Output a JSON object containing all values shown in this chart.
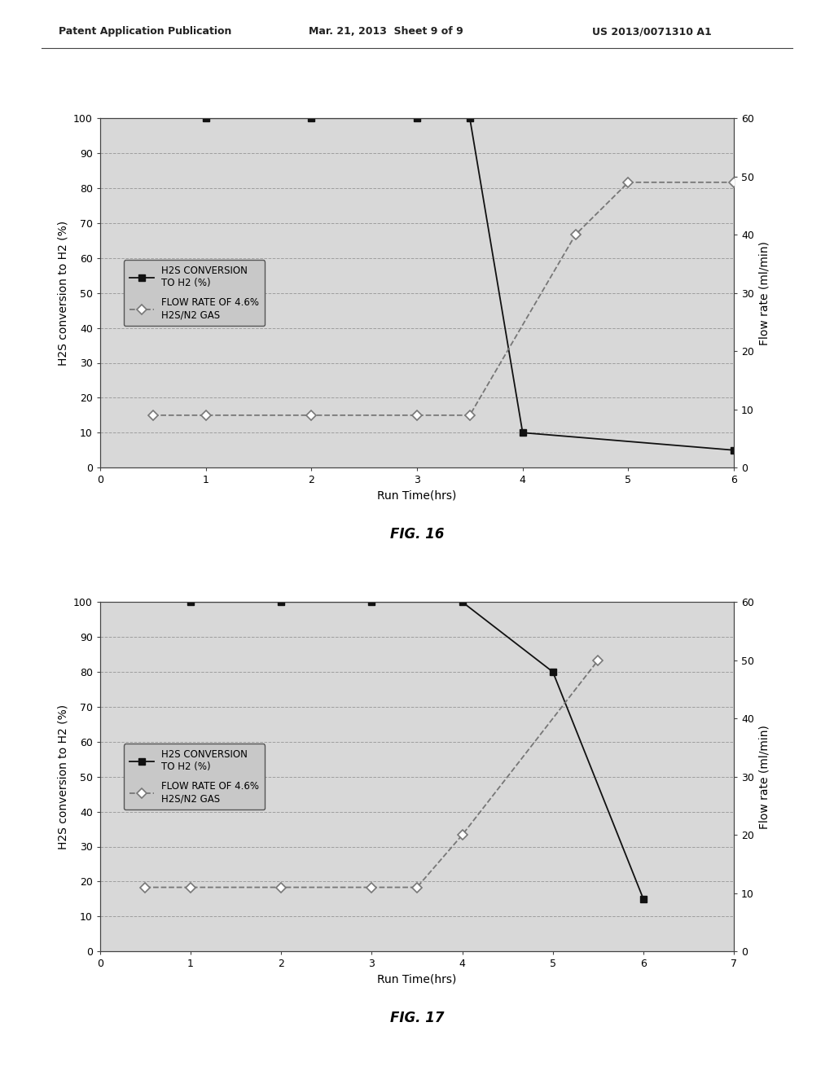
{
  "header_left": "Patent Application Publication",
  "header_mid": "Mar. 21, 2013  Sheet 9 of 9",
  "header_right": "US 2013/0071310 A1",
  "fig16": {
    "title": "FIG. 16",
    "xlabel": "Run Time(hrs)",
    "ylabel_left": "H2S conversion to H2 (%)",
    "ylabel_right": "Flow rate (ml/min)",
    "xlim": [
      0,
      6
    ],
    "ylim_left": [
      0,
      100
    ],
    "ylim_right": [
      0,
      60
    ],
    "xticks": [
      0,
      1,
      2,
      3,
      4,
      5,
      6
    ],
    "yticks_left": [
      0,
      10,
      20,
      30,
      40,
      50,
      60,
      70,
      80,
      90,
      100
    ],
    "yticks_right": [
      0,
      10,
      20,
      30,
      40,
      50,
      60
    ],
    "conversion_x": [
      1,
      2,
      3,
      3.5,
      4,
      6
    ],
    "conversion_y": [
      100,
      100,
      100,
      100,
      10,
      5
    ],
    "flowrate_x": [
      0.5,
      1,
      2,
      3,
      3.5,
      4.5,
      5,
      6
    ],
    "flowrate_y_mlmin": [
      9,
      9,
      9,
      9,
      9,
      40,
      49,
      49
    ],
    "legend_labels": [
      "H2S CONVERSION\nTO H2 (%)",
      "FLOW RATE OF 4.6%\nH2S/N2 GAS"
    ]
  },
  "fig17": {
    "title": "FIG. 17",
    "xlabel": "Run Time(hrs)",
    "ylabel_left": "H2S conversion to H2 (%)",
    "ylabel_right": "Flow rate (ml/min)",
    "xlim": [
      0,
      7
    ],
    "ylim_left": [
      0,
      100
    ],
    "ylim_right": [
      0,
      60
    ],
    "xticks": [
      0,
      1,
      2,
      3,
      4,
      5,
      6,
      7
    ],
    "yticks_left": [
      0,
      10,
      20,
      30,
      40,
      50,
      60,
      70,
      80,
      90,
      100
    ],
    "yticks_right": [
      0,
      10,
      20,
      30,
      40,
      50,
      60
    ],
    "conversion_x": [
      1,
      2,
      3,
      4,
      5,
      6
    ],
    "conversion_y": [
      100,
      100,
      100,
      100,
      80,
      15
    ],
    "flowrate_x": [
      0.5,
      1,
      2,
      3,
      3.5,
      4,
      5.5
    ],
    "flowrate_y_mlmin": [
      11,
      11,
      11,
      11,
      11,
      20,
      50
    ],
    "legend_labels": [
      "H2S CONVERSION\nTO H2 (%)",
      "FLOW RATE OF 4.6%\nH2S/N2 GAS"
    ]
  },
  "plot_bg": "#d8d8d8",
  "fig_bg": "#ffffff",
  "grid_color": "#999999",
  "line1_color": "#111111",
  "line2_color": "#777777",
  "legend_bg": "#c8c8c8",
  "legend_edge": "#555555"
}
